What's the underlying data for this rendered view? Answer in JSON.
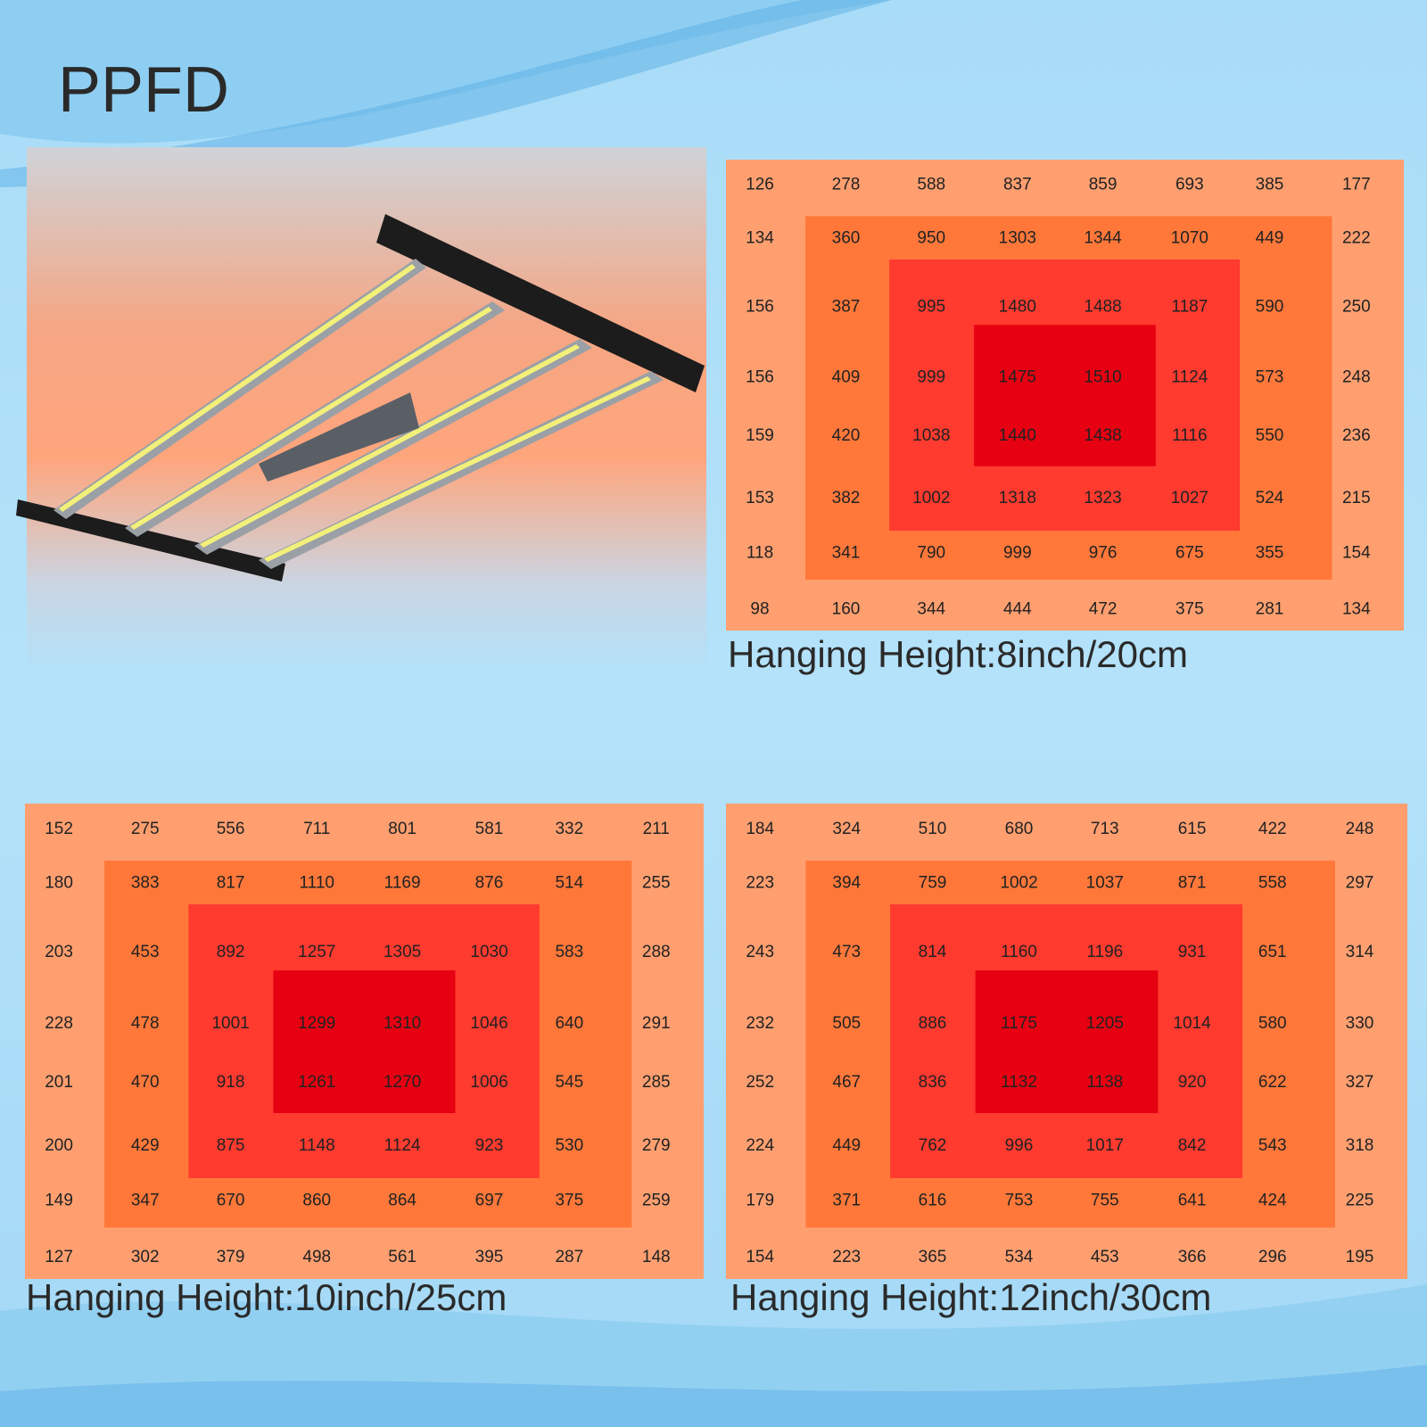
{
  "title": "PPFD",
  "grids": [
    {
      "caption": "Hanging Height:8inch/20cm",
      "rows": [
        [
          126,
          278,
          588,
          837,
          859,
          693,
          385,
          177
        ],
        [
          134,
          360,
          950,
          1303,
          1344,
          1070,
          449,
          222
        ],
        [
          156,
          387,
          995,
          1480,
          1488,
          1187,
          590,
          250
        ],
        [
          156,
          409,
          999,
          1475,
          1510,
          1124,
          573,
          248
        ],
        [
          159,
          420,
          1038,
          1440,
          1438,
          1116,
          550,
          236
        ],
        [
          153,
          382,
          1002,
          1318,
          1323,
          1027,
          524,
          215
        ],
        [
          118,
          341,
          790,
          999,
          976,
          675,
          355,
          154
        ],
        [
          98,
          160,
          344,
          444,
          472,
          375,
          281,
          134
        ]
      ]
    },
    {
      "caption": "Hanging Height:10inch/25cm",
      "rows": [
        [
          152,
          275,
          556,
          711,
          801,
          581,
          332,
          211
        ],
        [
          180,
          383,
          817,
          1110,
          1169,
          876,
          514,
          255
        ],
        [
          203,
          453,
          892,
          1257,
          1305,
          1030,
          583,
          288
        ],
        [
          228,
          478,
          1001,
          1299,
          1310,
          1046,
          640,
          291
        ],
        [
          201,
          470,
          918,
          1261,
          1270,
          1006,
          545,
          285
        ],
        [
          200,
          429,
          875,
          1148,
          1124,
          923,
          530,
          279
        ],
        [
          149,
          347,
          670,
          860,
          864,
          697,
          375,
          259
        ],
        [
          127,
          302,
          379,
          498,
          561,
          395,
          287,
          148
        ]
      ]
    },
    {
      "caption": "Hanging Height:12inch/30cm",
      "rows": [
        [
          184,
          324,
          510,
          680,
          713,
          615,
          422,
          248
        ],
        [
          223,
          394,
          759,
          1002,
          1037,
          871,
          558,
          297
        ],
        [
          243,
          473,
          814,
          1160,
          1196,
          931,
          651,
          314
        ],
        [
          232,
          505,
          886,
          1175,
          1205,
          1014,
          580,
          330
        ],
        [
          252,
          467,
          836,
          1132,
          1138,
          920,
          622,
          327
        ],
        [
          224,
          449,
          762,
          996,
          1017,
          842,
          543,
          318
        ],
        [
          179,
          371,
          616,
          753,
          755,
          641,
          424,
          225
        ],
        [
          154,
          223,
          365,
          534,
          453,
          366,
          296,
          195
        ]
      ]
    }
  ]
}
